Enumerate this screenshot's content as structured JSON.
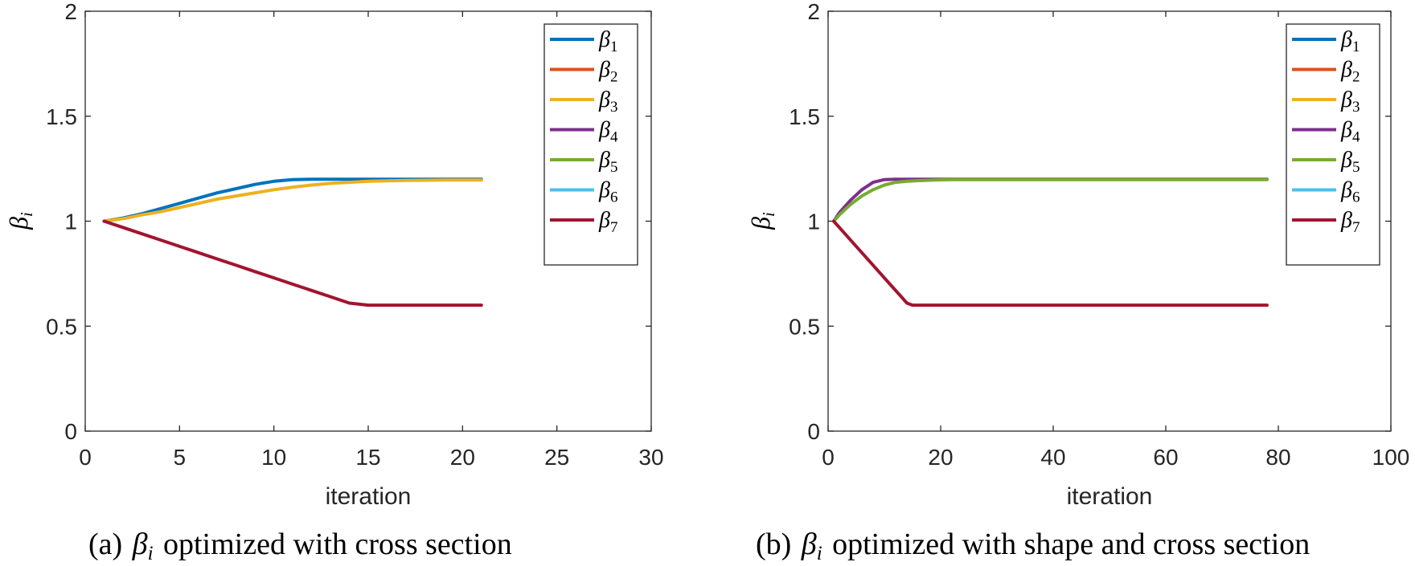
{
  "colors": {
    "beta1": "#0072BD",
    "beta2": "#D95319",
    "beta3": "#EDB120",
    "beta4": "#7E2F8E",
    "beta5": "#77AC30",
    "beta6": "#4DBEEE",
    "beta7": "#A2142F"
  },
  "chart_data": [
    {
      "type": "line",
      "caption_prefix": "(a)",
      "caption_symbol": "β",
      "caption_subscript": "i",
      "caption_suffix": "optimized with cross section",
      "xlabel": "iteration",
      "ylabel_symbol": "β",
      "ylabel_subscript": "i",
      "xlim": [
        0,
        30
      ],
      "ylim": [
        0,
        2
      ],
      "xticks": [
        0,
        5,
        10,
        15,
        20,
        25,
        30
      ],
      "yticks": [
        0,
        0.5,
        1,
        1.5,
        2
      ],
      "ytick_labels": [
        "0",
        "0.5",
        "1",
        "1.5",
        "2"
      ],
      "legend_position": "top-right",
      "series": [
        {
          "name": "β",
          "sub": "1",
          "color_key": "beta1",
          "x": [
            1,
            2,
            3,
            4,
            5,
            6,
            7,
            8,
            9,
            10,
            11,
            12,
            13,
            14,
            15,
            16,
            17,
            18,
            19,
            20,
            21
          ],
          "y": [
            1.0,
            1.015,
            1.035,
            1.06,
            1.085,
            1.11,
            1.135,
            1.155,
            1.175,
            1.19,
            1.198,
            1.2,
            1.2,
            1.2,
            1.2,
            1.2,
            1.2,
            1.2,
            1.2,
            1.2,
            1.2
          ]
        },
        {
          "name": "β",
          "sub": "2",
          "color_key": "beta2",
          "x": [],
          "y": []
        },
        {
          "name": "β",
          "sub": "3",
          "color_key": "beta3",
          "x": [
            1,
            2,
            3,
            4,
            5,
            6,
            7,
            8,
            9,
            10,
            11,
            12,
            13,
            14,
            15,
            16,
            17,
            18,
            19,
            20,
            21
          ],
          "y": [
            1.0,
            1.012,
            1.03,
            1.045,
            1.065,
            1.085,
            1.105,
            1.12,
            1.135,
            1.15,
            1.162,
            1.172,
            1.18,
            1.185,
            1.19,
            1.192,
            1.194,
            1.195,
            1.196,
            1.196,
            1.196
          ]
        },
        {
          "name": "β",
          "sub": "4",
          "color_key": "beta4",
          "x": [],
          "y": []
        },
        {
          "name": "β",
          "sub": "5",
          "color_key": "beta5",
          "x": [],
          "y": []
        },
        {
          "name": "β",
          "sub": "6",
          "color_key": "beta6",
          "x": [],
          "y": []
        },
        {
          "name": "β",
          "sub": "7",
          "color_key": "beta7",
          "x": [
            1,
            2,
            3,
            4,
            5,
            6,
            7,
            8,
            9,
            10,
            11,
            12,
            13,
            14,
            15,
            16,
            17,
            18,
            19,
            20,
            21
          ],
          "y": [
            1.0,
            0.97,
            0.94,
            0.91,
            0.88,
            0.85,
            0.82,
            0.79,
            0.76,
            0.73,
            0.7,
            0.67,
            0.64,
            0.61,
            0.6,
            0.6,
            0.6,
            0.6,
            0.6,
            0.6,
            0.6
          ]
        }
      ]
    },
    {
      "type": "line",
      "caption_prefix": "(b)",
      "caption_symbol": "β",
      "caption_subscript": "i",
      "caption_suffix": "optimized with shape and cross section",
      "xlabel": "iteration",
      "ylabel_symbol": "β",
      "ylabel_subscript": "i",
      "xlim": [
        0,
        100
      ],
      "ylim": [
        0,
        2
      ],
      "xticks": [
        0,
        20,
        40,
        60,
        80,
        100
      ],
      "yticks": [
        0,
        0.5,
        1,
        1.5,
        2
      ],
      "ytick_labels": [
        "0",
        "0.5",
        "1",
        "1.5",
        "2"
      ],
      "legend_position": "top-right",
      "series": [
        {
          "name": "β",
          "sub": "1",
          "color_key": "beta1",
          "x": [],
          "y": []
        },
        {
          "name": "β",
          "sub": "2",
          "color_key": "beta2",
          "x": [],
          "y": []
        },
        {
          "name": "β",
          "sub": "3",
          "color_key": "beta3",
          "x": [],
          "y": []
        },
        {
          "name": "β",
          "sub": "4",
          "color_key": "beta4",
          "x": [
            1,
            2,
            4,
            6,
            8,
            10,
            12,
            14,
            20,
            30,
            40,
            50,
            60,
            70,
            78
          ],
          "y": [
            1.0,
            1.04,
            1.1,
            1.15,
            1.185,
            1.198,
            1.2,
            1.2,
            1.2,
            1.2,
            1.2,
            1.2,
            1.2,
            1.2,
            1.2
          ]
        },
        {
          "name": "β",
          "sub": "5",
          "color_key": "beta5",
          "x": [
            1,
            2,
            4,
            6,
            8,
            10,
            12,
            14,
            16,
            18,
            20,
            22,
            30,
            40,
            50,
            60,
            70,
            78
          ],
          "y": [
            1.0,
            1.03,
            1.08,
            1.12,
            1.15,
            1.172,
            1.185,
            1.19,
            1.193,
            1.195,
            1.197,
            1.198,
            1.198,
            1.198,
            1.198,
            1.198,
            1.198,
            1.198
          ]
        },
        {
          "name": "β",
          "sub": "6",
          "color_key": "beta6",
          "x": [],
          "y": []
        },
        {
          "name": "β",
          "sub": "7",
          "color_key": "beta7",
          "x": [
            1,
            3,
            5,
            7,
            9,
            11,
            13,
            14,
            15,
            20,
            30,
            40,
            50,
            60,
            70,
            78
          ],
          "y": [
            1.0,
            0.94,
            0.88,
            0.82,
            0.76,
            0.7,
            0.64,
            0.61,
            0.6,
            0.6,
            0.6,
            0.6,
            0.6,
            0.6,
            0.6,
            0.6
          ]
        }
      ]
    }
  ]
}
